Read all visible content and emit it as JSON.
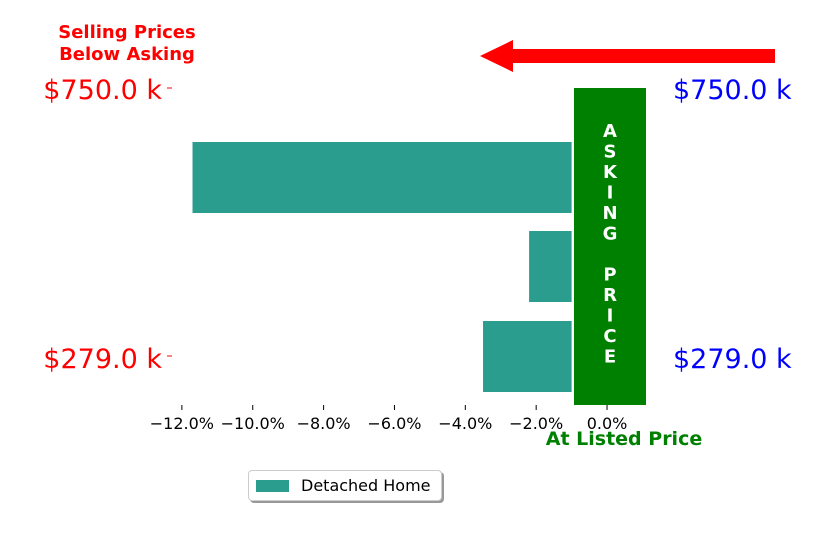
{
  "chart_data": {
    "type": "bar",
    "orientation": "horizontal",
    "categories": [
      "",
      "",
      ""
    ],
    "series": [
      {
        "name": "Detached Home",
        "values": [
          -11.7,
          -2.2,
          -3.5
        ]
      }
    ],
    "xlim": [
      -12.9,
      1.1
    ],
    "x_ticks": [
      "−12.0%",
      "−10.0%",
      "−8.0%",
      "−6.0%",
      "−4.0%",
      "−2.0%",
      "0.0%"
    ],
    "x_tick_values": [
      -12,
      -10,
      -8,
      -6,
      -4,
      -2,
      0
    ],
    "grid": false,
    "legend_position": "bottom-center",
    "annotations": {
      "below_asking_title_line1": "Selling Prices",
      "below_asking_title_line2": "Below Asking",
      "left_top_price": "$750.0 k",
      "left_bottom_price": "$279.0 k",
      "right_top_price": "$750.0 k",
      "right_bottom_price": "$279.0 k",
      "asking_price_letters": [
        "A",
        "S",
        "K",
        "I",
        "N",
        "G",
        "",
        "P",
        "R",
        "I",
        "C",
        "E"
      ],
      "at_listed_price": "At Listed Price"
    }
  },
  "colors": {
    "bar": "#2a9d8f",
    "asking_band": "#008000",
    "arrow": "#ff0000",
    "left_labels": "#ff0000",
    "right_labels": "#0000ff",
    "listed_label": "#008000"
  },
  "legend": {
    "label": "Detached Home"
  }
}
